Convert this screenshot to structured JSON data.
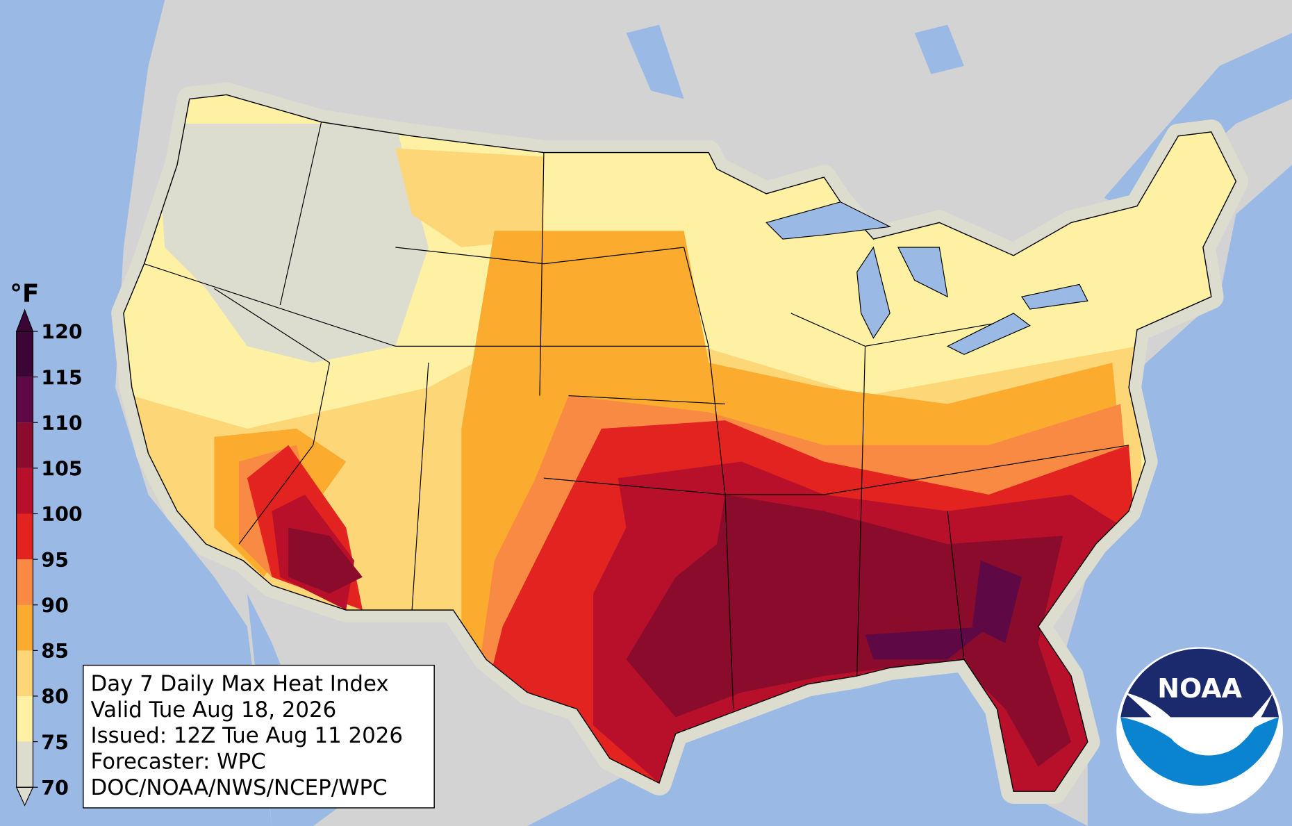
{
  "legend": {
    "unit": "°F",
    "ticks": [
      70,
      75,
      80,
      85,
      90,
      95,
      100,
      105,
      110,
      115,
      120
    ],
    "colors": [
      "#dcdccf",
      "#fff1a3",
      "#fdd677",
      "#fbab2e",
      "#f98a43",
      "#e3231f",
      "#b8102b",
      "#8a0b2b",
      "#5e0846",
      "#3b0535"
    ]
  },
  "info": {
    "lines": [
      "Day 7 Daily Max Heat Index",
      "Valid Tue Aug 18, 2026",
      "Issued: 12Z Tue Aug 11 2026",
      "Forecaster: WPC",
      "DOC/NOAA/NWS/NCEP/WPC"
    ]
  },
  "logo": {
    "text": "NOAA"
  }
}
